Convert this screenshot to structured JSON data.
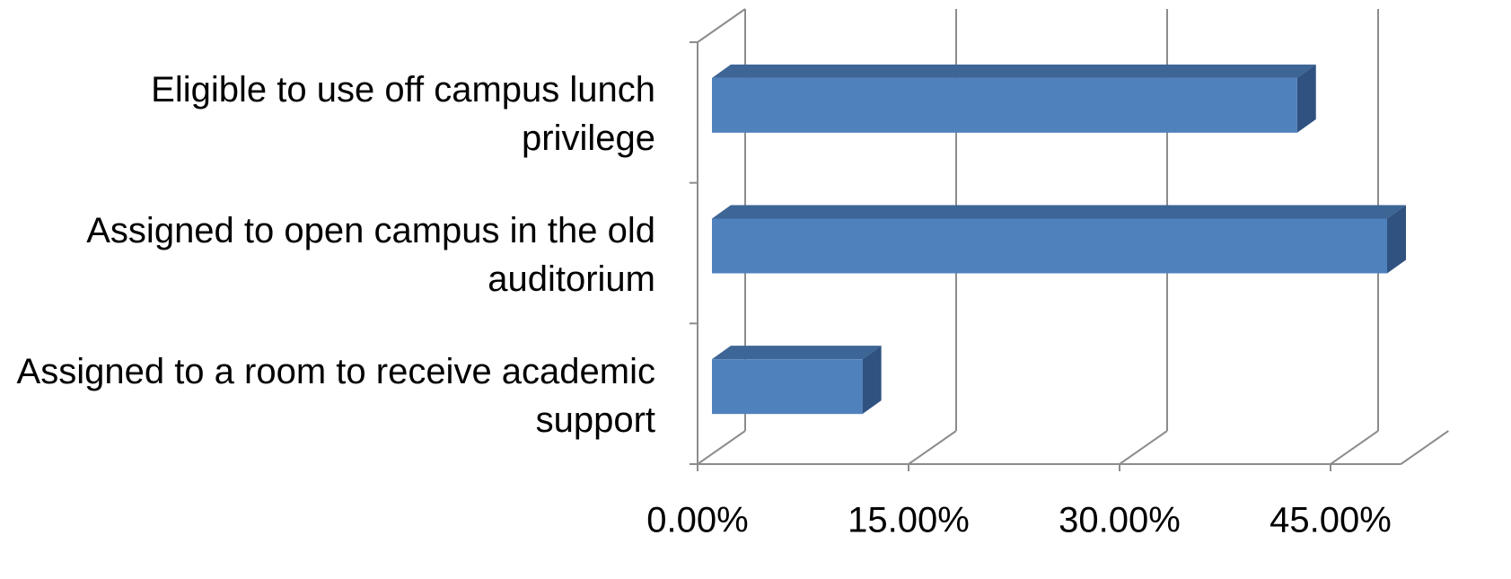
{
  "chart_data": {
    "type": "bar3d_horizontal",
    "categories": [
      "Eligible to use off campus lunch privilege",
      "Assigned to open campus in the old auditorium",
      "Assigned to a room to receive academic support"
    ],
    "values": [
      41.6,
      48.0,
      10.7
    ],
    "color": "#4f81bd",
    "xlim": [
      0,
      50
    ],
    "xticks": [
      {
        "value": 0,
        "label": "0.00%"
      },
      {
        "value": 15,
        "label": "15.00%"
      },
      {
        "value": 30,
        "label": "30.00%"
      },
      {
        "value": 45,
        "label": "45.00%"
      }
    ],
    "grid": true
  }
}
